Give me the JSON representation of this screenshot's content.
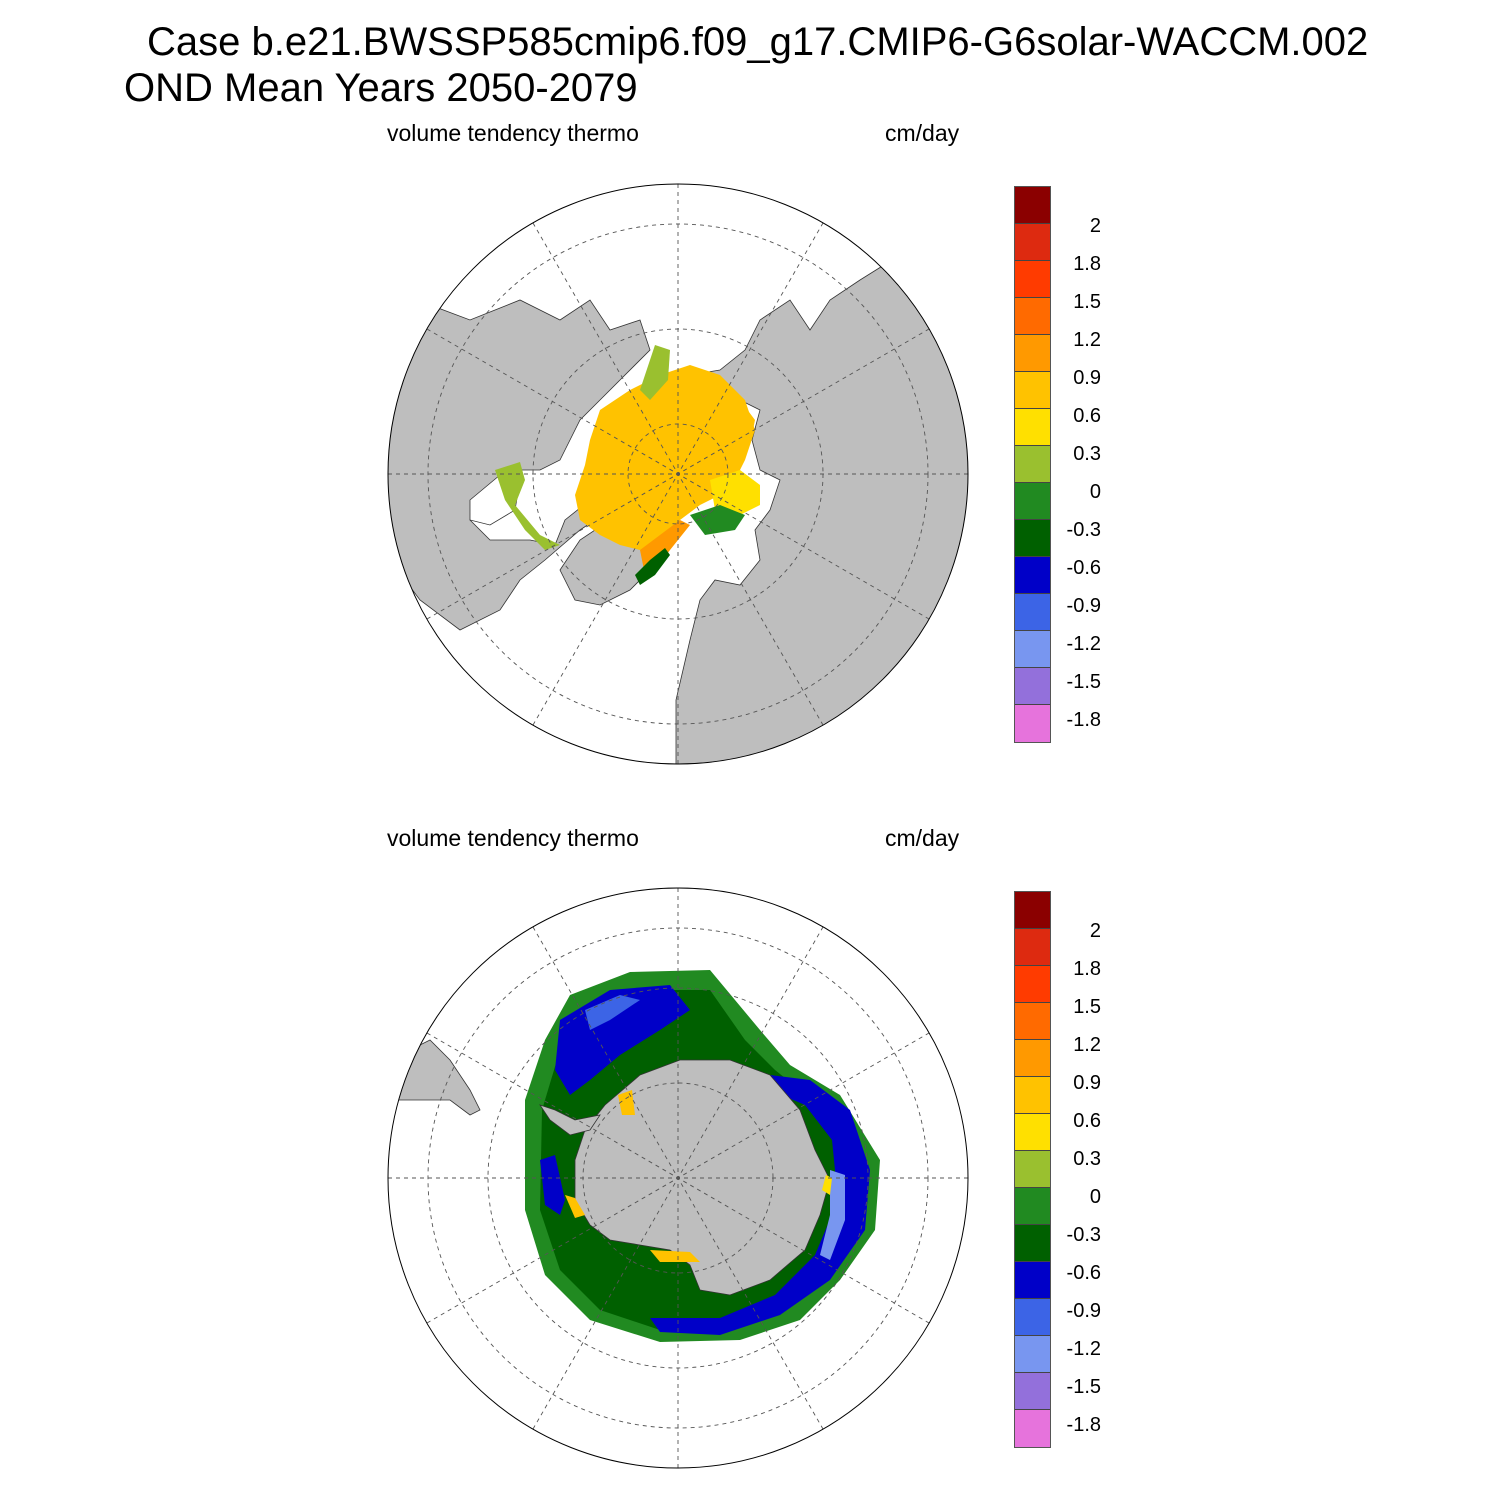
{
  "title": {
    "line1": "Case b.e21.BWSSP585cmip6.f09_g17.CMIP6-G6solar-WACCM.002",
    "line2": "OND Mean   Years 2050-2079"
  },
  "panels": [
    {
      "id": "north",
      "left_label": "volume tendency thermo",
      "right_label": "cm/day",
      "hemisphere": "Northern",
      "projection": "polar stereographic"
    },
    {
      "id": "south",
      "left_label": "volume tendency thermo",
      "right_label": "cm/day",
      "hemisphere": "Southern",
      "projection": "polar stereographic"
    }
  ],
  "colorbar": {
    "tick_labels": [
      "2",
      "1.8",
      "1.5",
      "1.2",
      "0.9",
      "0.6",
      "0.3",
      "0",
      "-0.3",
      "-0.6",
      "-0.9",
      "-1.2",
      "-1.5",
      "-1.8"
    ],
    "colors": [
      "#8b0000",
      "#dd2a10",
      "#ff3b00",
      "#ff6a00",
      "#ff9900",
      "#ffc200",
      "#ffe000",
      "#9ac02f",
      "#218a21",
      "#006000",
      "#0000c8",
      "#3c64e6",
      "#7896f0",
      "#9370db",
      "#e673dc"
    ]
  },
  "map_colors": {
    "land": "#bebebe",
    "ocean": "#ffffff",
    "grid": "#555555"
  }
}
